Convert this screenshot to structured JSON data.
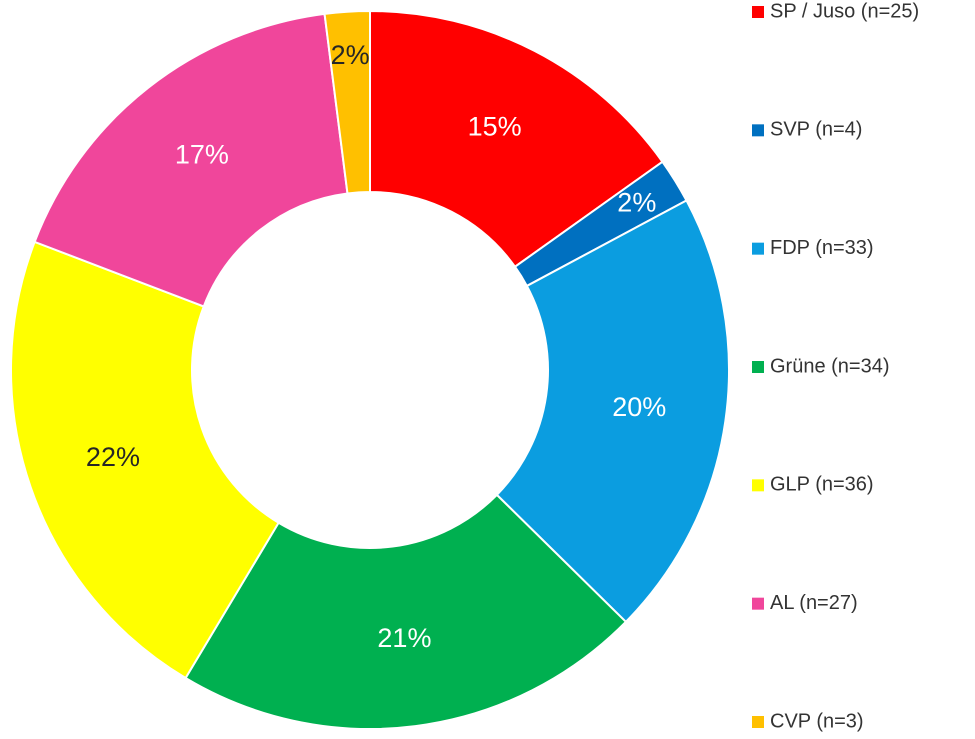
{
  "chart_data": {
    "type": "donut",
    "categories": [
      "SP / Juso (n=25)",
      "SVP (n=4)",
      "FDP (n=33)",
      "Grüne (n=34)",
      "GLP (n=36)",
      "AL (n=27)",
      "CVP (n=3)"
    ],
    "values": [
      15,
      2,
      20,
      21,
      22,
      17,
      2
    ],
    "value_labels": [
      "15%",
      "2%",
      "20%",
      "21%",
      "22%",
      "17%",
      "2%"
    ],
    "colors": [
      "#ff0000",
      "#0070c0",
      "#0b9de0",
      "#00b050",
      "#ffff00",
      "#f0469b",
      "#ffc000"
    ],
    "label_colors": [
      "#ffffff",
      "#ffffff",
      "#ffffff",
      "#ffffff",
      "#262626",
      "#ffffff",
      "#262626"
    ],
    "legend": "right"
  }
}
